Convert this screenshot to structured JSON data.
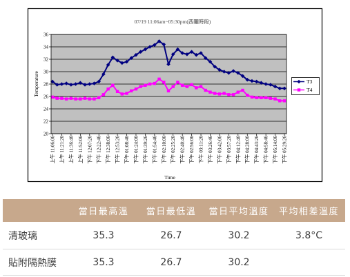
{
  "chart_data": {
    "type": "line",
    "title": "07/19 11:06am~05:30pm(西曬時段)",
    "xlabel": "Time",
    "ylabel": "Temperature",
    "ylim": [
      20,
      36
    ],
    "yticks": [
      20,
      22,
      24,
      26,
      28,
      30,
      32,
      34,
      36
    ],
    "grid": true,
    "legend": "right",
    "xtick_labels": [
      "上午 11:06:06",
      "上午 11:21:26",
      "上午 11:36:46",
      "上午 11:52:06",
      "下午 12:07:26",
      "下午 12:22:46",
      "下午 12:38:06",
      "下午 12:53:26",
      "下午 01:08:46",
      "下午 01:24:06",
      "下午 01:39:26",
      "下午 01:54:46",
      "下午 02:10:06",
      "下午 02:25:26",
      "下午 02:40:46",
      "下午 02:56:06",
      "下午 03:11:26",
      "下午 03:26:46",
      "下午 03:42:06",
      "下午 03:57:26",
      "下午 04:12:46",
      "下午 04:28:06",
      "下午 04:43:26",
      "下午 04:58:46",
      "下午 05:14:06",
      "下午 05:29:26"
    ],
    "x": [
      "上午 11:06:06",
      "上午 11:13:46",
      "上午 11:21:26",
      "上午 11:29:06",
      "上午 11:36:46",
      "上午 11:44:26",
      "上午 11:52:06",
      "上午 11:59:46",
      "下午 12:07:26",
      "下午 12:15:06",
      "下午 12:22:46",
      "下午 12:30:26",
      "下午 12:38:06",
      "下午 12:45:46",
      "下午 12:53:26",
      "下午 01:01:06",
      "下午 01:08:46",
      "下午 01:16:26",
      "下午 01:24:06",
      "下午 01:31:46",
      "下午 01:39:26",
      "下午 01:47:06",
      "下午 01:54:46",
      "下午 02:02:26",
      "下午 02:10:06",
      "下午 02:17:46",
      "下午 02:25:26",
      "下午 02:33:06",
      "下午 02:40:46",
      "下午 02:48:26",
      "下午 02:56:06",
      "下午 03:03:46",
      "下午 03:11:26",
      "下午 03:19:06",
      "下午 03:26:46",
      "下午 03:34:26",
      "下午 03:42:06",
      "下午 03:49:46",
      "下午 03:57:26",
      "下午 04:05:06",
      "下午 04:12:46",
      "下午 04:20:26",
      "下午 04:28:06",
      "下午 04:35:46",
      "下午 04:43:26",
      "下午 04:51:06",
      "下午 04:58:46",
      "下午 05:06:26",
      "下午 05:14:06",
      "下午 05:21:46",
      "下午 05:29:26"
    ],
    "series": [
      {
        "name": "T3",
        "color": "#000080",
        "marker": "diamond",
        "values": [
          28.4,
          27.9,
          28.0,
          28.1,
          27.9,
          28.0,
          28.2,
          27.9,
          28.0,
          28.1,
          28.4,
          29.6,
          31.1,
          32.3,
          31.8,
          31.4,
          31.6,
          32.2,
          32.7,
          33.2,
          33.6,
          34.0,
          34.3,
          34.9,
          34.4,
          31.2,
          32.8,
          33.6,
          33.0,
          32.8,
          33.2,
          32.7,
          33.0,
          32.2,
          31.6,
          30.8,
          30.3,
          30.0,
          29.8,
          30.1,
          29.8,
          29.3,
          28.7,
          28.5,
          28.4,
          28.2,
          28.0,
          27.9,
          27.6,
          27.3,
          27.3
        ]
      },
      {
        "name": "T4",
        "color": "#ff00ff",
        "marker": "square",
        "values": [
          25.9,
          25.7,
          25.7,
          25.6,
          25.7,
          25.6,
          25.6,
          25.7,
          25.6,
          25.6,
          25.8,
          26.3,
          27.2,
          27.8,
          26.8,
          26.4,
          26.5,
          26.9,
          27.2,
          27.6,
          27.8,
          28.0,
          28.1,
          28.8,
          28.3,
          26.9,
          27.6,
          28.3,
          27.8,
          27.6,
          27.9,
          27.4,
          27.6,
          27.0,
          26.7,
          26.5,
          26.4,
          26.5,
          26.3,
          26.3,
          26.7,
          27.0,
          26.2,
          25.9,
          25.8,
          25.8,
          25.8,
          25.7,
          25.6,
          25.3,
          25.3
        ]
      }
    ]
  },
  "table": {
    "headers": [
      "當日最高溫",
      "當日最低溫",
      "當日平均溫度",
      "平均相差溫度"
    ],
    "rows": [
      {
        "label": "清玻璃",
        "cells": [
          "35.3",
          "26.7",
          "30.2",
          "3.8°C"
        ]
      },
      {
        "label": "貼附隔熱膜",
        "cells": [
          "35.3",
          "26.7",
          "30.2",
          ""
        ]
      }
    ]
  }
}
